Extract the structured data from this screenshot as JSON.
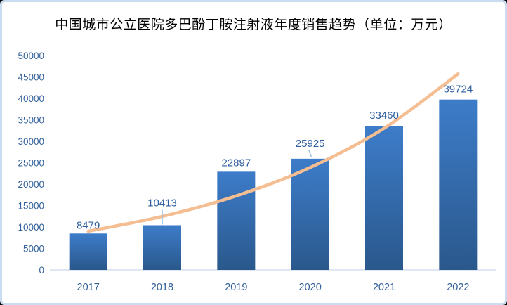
{
  "chart_data": {
    "type": "bar",
    "title": "中国城市公立医院多巴酚丁胺注射液年度销售趋势（单位：万元）",
    "unit": "万元",
    "categories": [
      "2017",
      "2018",
      "2019",
      "2020",
      "2021",
      "2022"
    ],
    "values": [
      8479,
      10413,
      22897,
      25925,
      33460,
      39724
    ],
    "data_labels": [
      "8479",
      "10413",
      "22897",
      "25925",
      "33460",
      "39724"
    ],
    "trendline": {
      "type": "exponential",
      "values": [
        9012,
        12470,
        17254,
        23874,
        33033,
        45705
      ]
    },
    "yticks": [
      0,
      5000,
      10000,
      15000,
      20000,
      25000,
      30000,
      35000,
      40000,
      45000,
      50000
    ],
    "ylim": [
      0,
      50000
    ],
    "xlabel": "",
    "ylabel": "",
    "grid": false,
    "legend": false,
    "colors": {
      "bar_gradient_top": "#3D7CC9",
      "bar_gradient_bottom": "#2A588C",
      "trendline": "#F5BE92",
      "data_label": "#2E5E9E",
      "axis_label": "#31609A",
      "axis_line": "#D5DFEF",
      "leader_line": "#9DC3E6",
      "frame_border": "#CBDCF1",
      "title": "#000000",
      "background": "#FFFFFF"
    }
  }
}
